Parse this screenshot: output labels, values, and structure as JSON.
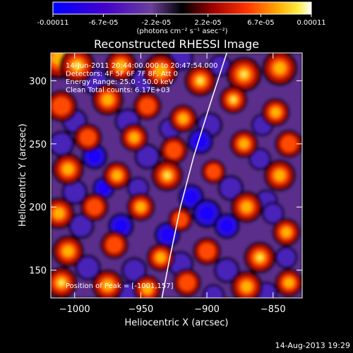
{
  "colorbar": {
    "tick_labels": [
      "-0.00011",
      "-6.7e-05",
      "-2.2e-05",
      "2.2e-05",
      "6.7e-05",
      "0.00011"
    ],
    "units": "(photons cm⁻² s⁻¹ asec⁻²)"
  },
  "chart_data": {
    "type": "heatmap",
    "title": "Reconstructed RHESSI Image",
    "xlabel": "Heliocentric X (arcsec)",
    "ylabel": "Heliocentric Y (arcsec)",
    "xlim": [
      -1018,
      -828
    ],
    "ylim": [
      128,
      322
    ],
    "x_ticks": [
      -1000,
      -950,
      -900,
      -850
    ],
    "y_ticks": [
      150,
      200,
      250,
      300
    ],
    "x_tick_labels": [
      "−1000",
      "−950",
      "−900",
      "−850"
    ],
    "y_tick_labels": [
      "150",
      "200",
      "250",
      "300"
    ],
    "value_range": [
      -0.00011,
      0.00011
    ],
    "colormap": [
      "#0000ff",
      "#3a00cc",
      "#6633aa",
      "#7a3f9a",
      "#000000",
      "#8a0000",
      "#e02000",
      "#ff8800",
      "#ffdd00",
      "#ffffff"
    ],
    "annotations": [
      "14-Jun-2011 20:44:00.000 to 20:47:54.000",
      "Detectors: 4F 5F 6F 7F 8F, Att 0",
      "Energy Range: 25.0 - 50.0 keV",
      "Clean     Total counts: 6.17E+03"
    ],
    "peak_label": "Position of Peak = [-1001,157]",
    "limb_curve": [
      [
        -934,
        128
      ],
      [
        -928,
        160
      ],
      [
        -920,
        200
      ],
      [
        -910,
        240
      ],
      [
        -898,
        280
      ],
      [
        -885,
        322
      ]
    ],
    "blobs_positive": [
      [
        -1012,
        318,
        0.9,
        12
      ],
      [
        -998,
        312,
        1.0,
        10
      ],
      [
        -965,
        312,
        0.8,
        9
      ],
      [
        -935,
        308,
        0.9,
        10
      ],
      [
        -905,
        300,
        1.0,
        9
      ],
      [
        -872,
        305,
        1.0,
        10
      ],
      [
        -845,
        310,
        0.9,
        10
      ],
      [
        -1010,
        280,
        0.6,
        9
      ],
      [
        -975,
        285,
        0.9,
        9
      ],
      [
        -945,
        280,
        0.7,
        8
      ],
      [
        -918,
        270,
        0.9,
        8
      ],
      [
        -880,
        285,
        1.0,
        8
      ],
      [
        -848,
        275,
        0.8,
        8
      ],
      [
        -990,
        255,
        0.7,
        8
      ],
      [
        -955,
        255,
        0.9,
        8
      ],
      [
        -925,
        245,
        0.7,
        8
      ],
      [
        -872,
        250,
        0.9,
        8
      ],
      [
        -838,
        250,
        0.7,
        8
      ],
      [
        -1005,
        230,
        0.9,
        9
      ],
      [
        -968,
        225,
        0.9,
        8
      ],
      [
        -930,
        225,
        1.0,
        9
      ],
      [
        -895,
        228,
        0.7,
        7
      ],
      [
        -845,
        225,
        0.9,
        9
      ],
      [
        -1012,
        195,
        0.8,
        9
      ],
      [
        -985,
        200,
        0.6,
        8
      ],
      [
        -950,
        200,
        0.9,
        8
      ],
      [
        -920,
        190,
        0.6,
        7
      ],
      [
        -870,
        200,
        0.9,
        9
      ],
      [
        -840,
        180,
        0.8,
        8
      ],
      [
        -1005,
        165,
        0.8,
        9
      ],
      [
        -970,
        170,
        0.7,
        8
      ],
      [
        -935,
        160,
        0.8,
        8
      ],
      [
        -900,
        165,
        0.7,
        8
      ],
      [
        -860,
        160,
        1.0,
        9
      ],
      [
        -1010,
        140,
        1.0,
        9
      ],
      [
        -975,
        138,
        0.8,
        9
      ],
      [
        -945,
        135,
        0.8,
        8
      ],
      [
        -915,
        140,
        0.7,
        8
      ],
      [
        -870,
        137,
        0.9,
        9
      ],
      [
        -838,
        140,
        0.8,
        8
      ]
    ],
    "blobs_negative": [
      [
        -985,
        300,
        0.7,
        9
      ],
      [
        -948,
        300,
        0.6,
        8
      ],
      [
        -920,
        318,
        0.5,
        8
      ],
      [
        -890,
        312,
        0.5,
        7
      ],
      [
        -1000,
        268,
        0.6,
        8
      ],
      [
        -960,
        268,
        0.7,
        8
      ],
      [
        -928,
        262,
        0.6,
        7
      ],
      [
        -898,
        265,
        0.7,
        8
      ],
      [
        -858,
        265,
        0.5,
        7
      ],
      [
        -1010,
        250,
        0.5,
        8
      ],
      [
        -985,
        240,
        0.8,
        8
      ],
      [
        -945,
        240,
        0.7,
        8
      ],
      [
        -905,
        252,
        0.8,
        8
      ],
      [
        -860,
        238,
        0.6,
        7
      ],
      [
        -1000,
        212,
        0.7,
        8
      ],
      [
        -978,
        215,
        0.8,
        7
      ],
      [
        -952,
        215,
        0.6,
        7
      ],
      [
        -912,
        208,
        0.8,
        8
      ],
      [
        -882,
        215,
        0.7,
        8
      ],
      [
        -855,
        205,
        0.6,
        7
      ],
      [
        -995,
        185,
        0.7,
        8
      ],
      [
        -965,
        185,
        0.8,
        8
      ],
      [
        -930,
        178,
        0.8,
        8
      ],
      [
        -900,
        195,
        1.0,
        9
      ],
      [
        -885,
        185,
        0.8,
        8
      ],
      [
        -850,
        195,
        0.6,
        7
      ],
      [
        -990,
        152,
        0.6,
        8
      ],
      [
        -955,
        150,
        0.7,
        8
      ],
      [
        -920,
        155,
        0.6,
        8
      ],
      [
        -885,
        150,
        0.7,
        8
      ],
      [
        -840,
        160,
        0.6,
        7
      ],
      [
        -960,
        132,
        0.5,
        7
      ],
      [
        -895,
        130,
        0.6,
        7
      ],
      [
        -855,
        132,
        0.5,
        7
      ]
    ]
  },
  "footer": {
    "date": "14-Aug-2013 19:29"
  }
}
